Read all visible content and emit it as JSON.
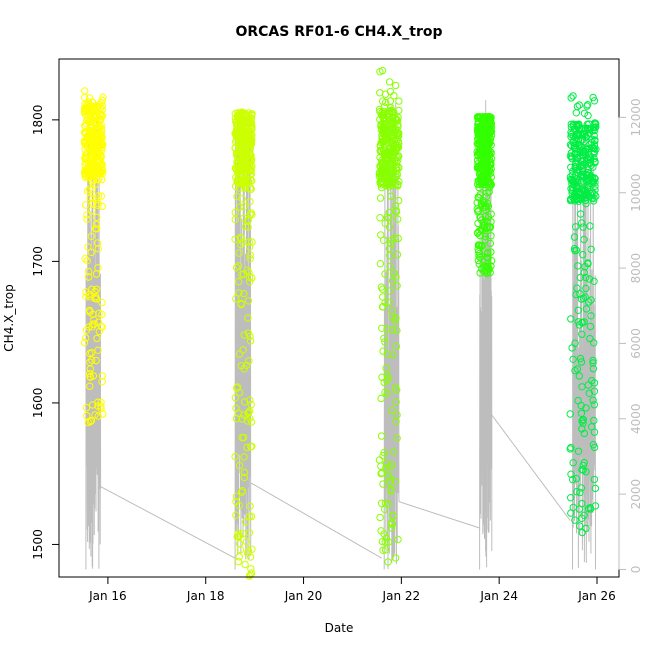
{
  "chart_data": {
    "type": "scatter",
    "title": "ORCAS RF01-6 CH4.X_trop",
    "xlabel": "Date",
    "ylabel": "CH4.X_trop",
    "x_ticks": [
      "Jan 16",
      "Jan 18",
      "Jan 20",
      "Jan 22",
      "Jan 24",
      "Jan 26"
    ],
    "x_tick_days": [
      16,
      18,
      20,
      22,
      24,
      26
    ],
    "xlim_days": [
      15.0,
      26.45
    ],
    "y_ticks": [
      1500,
      1600,
      1700,
      1800
    ],
    "ylim": [
      1477,
      1843
    ],
    "y2_ticks": [
      0,
      2000,
      4000,
      6000,
      8000,
      10000,
      12000
    ],
    "y2lim": [
      -200,
      13550
    ],
    "y2_color": "#bdbdbd",
    "series": [
      {
        "color": "#ffff00",
        "day_start": 15.52,
        "day_end": 15.9,
        "y_min": 1586,
        "y_max": 1823,
        "y_center": 1785
      },
      {
        "color": "#ccff00",
        "day_start": 18.6,
        "day_end": 18.95,
        "y_min": 1477,
        "y_max": 1812,
        "y_center": 1778
      },
      {
        "color": "#88ff00",
        "day_start": 21.55,
        "day_end": 21.95,
        "y_min": 1487,
        "y_max": 1836,
        "y_center": 1780
      },
      {
        "color": "#33ff00",
        "day_start": 23.55,
        "day_end": 23.85,
        "y_min": 1691,
        "y_max": 1802,
        "y_center": 1782
      },
      {
        "color": "#00ee44",
        "day_start": 25.45,
        "day_end": 25.98,
        "y_min": 1505,
        "y_max": 1822,
        "y_center": 1770
      }
    ],
    "altitude_trace": {
      "color": "#bdbdbd",
      "flights": [
        {
          "day_start": 15.55,
          "day_end": 15.85,
          "alt_end": 2200
        },
        {
          "day_start": 18.6,
          "day_end": 18.92,
          "alt_end": 2300
        },
        {
          "day_start": 21.65,
          "day_end": 21.95,
          "alt_end": 1800
        },
        {
          "day_start": 23.6,
          "day_end": 23.85,
          "alt_end": 4100
        },
        {
          "day_start": 25.5,
          "day_end": 25.97,
          "alt_end": 0
        }
      ],
      "transits": [
        {
          "from_day": 15.85,
          "from_alt": 2200,
          "to_day": 18.6,
          "to_alt": 300
        },
        {
          "from_day": 18.92,
          "from_alt": 2300,
          "to_day": 21.6,
          "to_alt": 300
        },
        {
          "from_day": 21.95,
          "from_alt": 1800,
          "to_day": 23.6,
          "to_alt": 1100
        },
        {
          "from_day": 23.85,
          "from_alt": 4100,
          "to_day": 25.45,
          "to_alt": 1300
        }
      ]
    }
  }
}
